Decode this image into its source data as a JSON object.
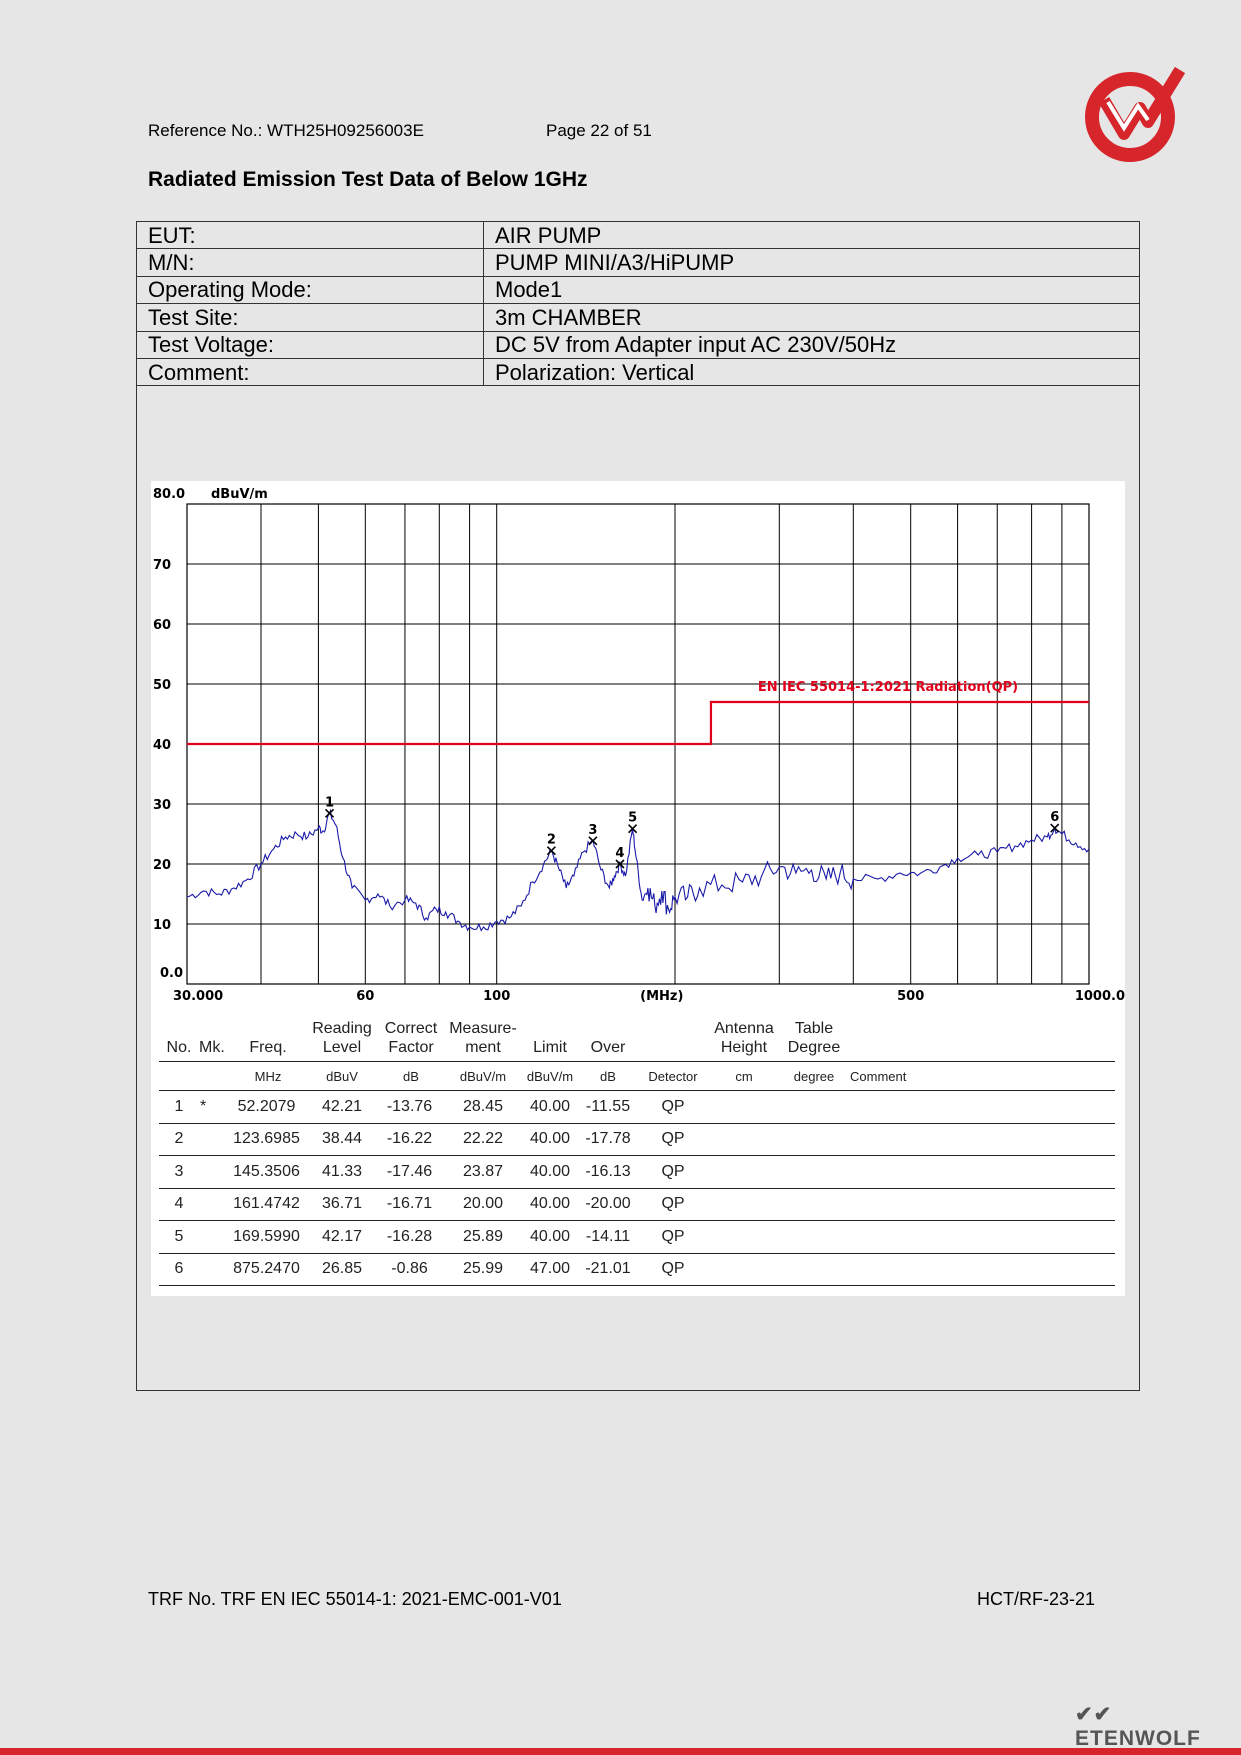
{
  "header": {
    "reference": "Reference No.: WTH25H09256003E",
    "page": "Page 22 of 51"
  },
  "title": "Radiated Emission Test Data of Below 1GHz",
  "info_rows": [
    {
      "label": "EUT:",
      "value": "AIR PUMP"
    },
    {
      "label": "M/N:",
      "value": "PUMP MINI/A3/HiPUMP"
    },
    {
      "label": "Operating Mode:",
      "value": "Mode1"
    },
    {
      "label": "Test Site:",
      "value": "3m CHAMBER"
    },
    {
      "label": "Test Voltage:",
      "value": "DC 5V from Adapter input AC 230V/50Hz"
    },
    {
      "label": "Comment:",
      "value": "Polarization: Vertical"
    }
  ],
  "chart_data": {
    "type": "line",
    "ylabel": "dBuV/m",
    "xlabel": "(MHz)",
    "y_top_label": "80.0",
    "y_bottom_label": "0.0",
    "ylim": [
      0,
      80
    ],
    "xlim": [
      30,
      1000
    ],
    "x_scale": "log",
    "yticks": [
      10,
      20,
      30,
      40,
      50,
      60,
      70
    ],
    "xtick_labels": [
      {
        "value": 30,
        "label": "30.000"
      },
      {
        "value": 60,
        "label": "60"
      },
      {
        "value": 100,
        "label": "100"
      },
      {
        "value": 500,
        "label": "500"
      },
      {
        "value": 1000,
        "label": "1000.0"
      }
    ],
    "grid": true,
    "limit_line": {
      "label": "EN IEC 55014-1:2021 Radiation(QP)",
      "segments": [
        [
          30,
          230,
          40
        ],
        [
          230,
          1000,
          47
        ]
      ],
      "color": "#e0001b"
    },
    "trace_color": "#1a1aa8",
    "trace": [
      [
        30,
        14.5
      ],
      [
        32,
        15.5
      ],
      [
        34,
        15
      ],
      [
        36,
        16
      ],
      [
        38,
        17.5
      ],
      [
        40,
        20
      ],
      [
        42,
        22.5
      ],
      [
        44,
        24.5
      ],
      [
        46,
        25
      ],
      [
        48,
        24.5
      ],
      [
        50,
        26
      ],
      [
        51,
        25.5
      ],
      [
        52.2,
        28.5
      ],
      [
        53.5,
        26.5
      ],
      [
        55,
        21
      ],
      [
        57,
        16
      ],
      [
        60,
        14
      ],
      [
        63,
        15
      ],
      [
        66,
        13
      ],
      [
        70,
        14
      ],
      [
        73,
        13.5
      ],
      [
        76,
        11
      ],
      [
        79,
        12.5
      ],
      [
        82,
        12
      ],
      [
        86,
        10.5
      ],
      [
        90,
        9.5
      ],
      [
        95,
        9.5
      ],
      [
        100,
        10.5
      ],
      [
        105,
        11
      ],
      [
        110,
        13
      ],
      [
        115,
        17
      ],
      [
        120,
        20
      ],
      [
        123.7,
        22.2
      ],
      [
        127,
        19.5
      ],
      [
        131,
        16
      ],
      [
        135,
        18
      ],
      [
        140,
        22
      ],
      [
        145.4,
        23.9
      ],
      [
        150,
        19
      ],
      [
        155,
        16
      ],
      [
        158,
        18
      ],
      [
        161.5,
        20
      ],
      [
        165,
        18
      ],
      [
        169.6,
        25.9
      ],
      [
        172,
        21
      ],
      [
        176,
        14
      ],
      [
        180,
        16
      ],
      [
        185,
        13
      ],
      [
        190,
        15.5
      ],
      [
        195,
        12.5
      ],
      [
        200,
        14.5
      ],
      [
        210,
        14.5
      ],
      [
        220,
        16
      ],
      [
        240,
        16.5
      ],
      [
        260,
        17
      ],
      [
        280,
        18
      ],
      [
        300,
        19.5
      ],
      [
        320,
        18.5
      ],
      [
        340,
        19
      ],
      [
        360,
        17.5
      ],
      [
        380,
        18.5
      ],
      [
        400,
        17.5
      ],
      [
        440,
        17.5
      ],
      [
        480,
        18.5
      ],
      [
        520,
        18.5
      ],
      [
        560,
        19.5
      ],
      [
        600,
        21
      ],
      [
        650,
        21.5
      ],
      [
        700,
        22
      ],
      [
        750,
        23
      ],
      [
        800,
        24
      ],
      [
        850,
        24.5
      ],
      [
        875.2,
        26
      ],
      [
        900,
        25
      ],
      [
        950,
        23.5
      ],
      [
        1000,
        22.5
      ]
    ],
    "markers": [
      {
        "label": "1",
        "x": 52.2079,
        "y": 28.45
      },
      {
        "label": "2",
        "x": 123.6985,
        "y": 22.22
      },
      {
        "label": "3",
        "x": 145.3506,
        "y": 23.87
      },
      {
        "label": "4",
        "x": 161.4742,
        "y": 20.0
      },
      {
        "label": "5",
        "x": 169.599,
        "y": 25.89
      },
      {
        "label": "6",
        "x": 875.247,
        "y": 25.99
      }
    ]
  },
  "results": {
    "headers": {
      "no": "No.",
      "mk": "Mk.",
      "freq": "Freq.",
      "reading": [
        "Reading",
        "Level"
      ],
      "correct": [
        "Correct",
        "Factor"
      ],
      "measure": [
        "Measure-",
        "ment"
      ],
      "limit": "Limit",
      "over": "Over",
      "antenna": [
        "Antenna",
        "Height"
      ],
      "table": [
        "Table",
        "Degree"
      ]
    },
    "units": [
      "MHz",
      "dBuV",
      "dB",
      "dBuV/m",
      "dBuV/m",
      "dB",
      "Detector",
      "cm",
      "degree",
      "Comment"
    ],
    "rows": [
      {
        "no": "1",
        "mk": "*",
        "freq": "52.2079",
        "reading": "42.21",
        "correct": "-13.76",
        "measure": "28.45",
        "limit": "40.00",
        "over": "-11.55",
        "detector": "QP"
      },
      {
        "no": "2",
        "mk": "",
        "freq": "123.6985",
        "reading": "38.44",
        "correct": "-16.22",
        "measure": "22.22",
        "limit": "40.00",
        "over": "-17.78",
        "detector": "QP"
      },
      {
        "no": "3",
        "mk": "",
        "freq": "145.3506",
        "reading": "41.33",
        "correct": "-17.46",
        "measure": "23.87",
        "limit": "40.00",
        "over": "-16.13",
        "detector": "QP"
      },
      {
        "no": "4",
        "mk": "",
        "freq": "161.4742",
        "reading": "36.71",
        "correct": "-16.71",
        "measure": "20.00",
        "limit": "40.00",
        "over": "-20.00",
        "detector": "QP"
      },
      {
        "no": "5",
        "mk": "",
        "freq": "169.5990",
        "reading": "42.17",
        "correct": "-16.28",
        "measure": "25.89",
        "limit": "40.00",
        "over": "-14.11",
        "detector": "QP"
      },
      {
        "no": "6",
        "mk": "",
        "freq": "875.2470",
        "reading": "26.85",
        "correct": "-0.86",
        "measure": "25.99",
        "limit": "47.00",
        "over": "-21.01",
        "detector": "QP"
      }
    ]
  },
  "footer": {
    "trf": "TRF No. TRF EN IEC 55014-1: 2021-EMC-001-V01",
    "code": "HCT/RF-23-21",
    "brand": "ETENWOLF"
  },
  "colors": {
    "accent_red": "#d6262c",
    "limit_red": "#e0001b",
    "trace_blue": "#1a1aa8"
  }
}
